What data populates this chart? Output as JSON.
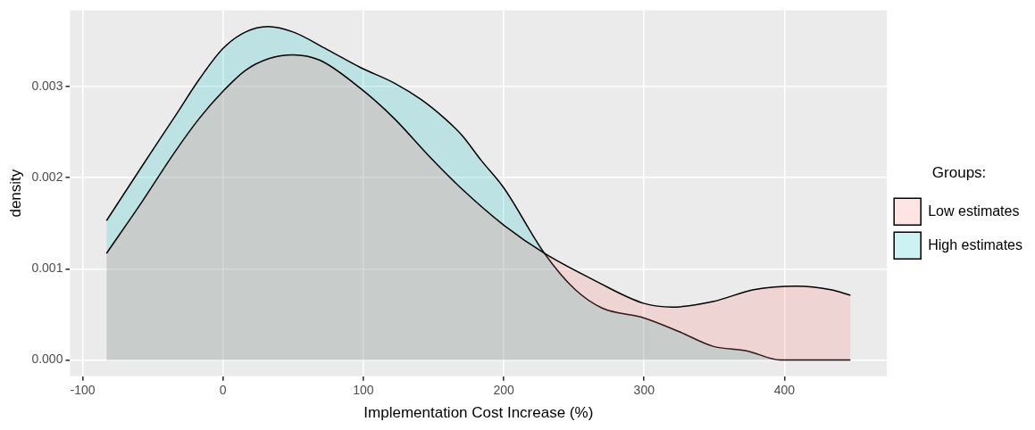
{
  "chart_data": {
    "type": "area",
    "xlabel": "Implementation Cost Increase (%)",
    "ylabel": "density",
    "legend_title": "Groups:",
    "legend": "right",
    "grid": true,
    "xlim": [
      -109,
      473
    ],
    "xticks": [
      -100,
      0,
      100,
      200,
      300,
      400
    ],
    "ylim": [
      -0.00018,
      0.00384
    ],
    "yticks": [
      {
        "value": 0,
        "label": "0.000"
      },
      {
        "value": 0.001,
        "label": "0.001"
      },
      {
        "value": 0.002,
        "label": "0.002"
      },
      {
        "value": 0.003,
        "label": "0.003"
      }
    ],
    "series": [
      {
        "name": "Low estimates",
        "color": "#f8766d",
        "x": [
          -83,
          -58,
          -34,
          -17,
          0,
          16,
          33,
          50,
          69,
          98,
          122,
          146,
          170,
          200,
          229,
          265,
          300,
          320,
          349,
          378,
          409,
          433,
          447
        ],
        "values": [
          0.00117,
          0.00173,
          0.00229,
          0.00265,
          0.00295,
          0.00318,
          0.00331,
          0.00335,
          0.00329,
          0.00298,
          0.00265,
          0.00225,
          0.00188,
          0.00148,
          0.00117,
          0.00087,
          0.00062,
          0.00058,
          0.00064,
          0.00077,
          0.00081,
          0.00077,
          0.00071
        ]
      },
      {
        "name": "High estimates",
        "color": "#00bfc4",
        "x": [
          -83,
          -58,
          -34,
          -17,
          0,
          16,
          32,
          50,
          74,
          98,
          122,
          141,
          158,
          170,
          184,
          200,
          229,
          251,
          270,
          300,
          325,
          349,
          373,
          397,
          447
        ],
        "values": [
          0.00153,
          0.00212,
          0.00268,
          0.00308,
          0.00342,
          0.0036,
          0.00366,
          0.0036,
          0.00341,
          0.00321,
          0.00304,
          0.00286,
          0.00265,
          0.00247,
          0.00219,
          0.00189,
          0.00117,
          0.00077,
          0.00057,
          0.00046,
          0.00031,
          0.00015,
          0.0001,
          0,
          0
        ]
      }
    ]
  }
}
